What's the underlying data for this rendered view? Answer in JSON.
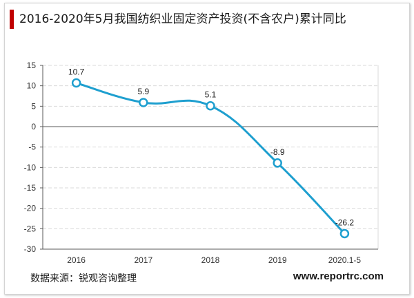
{
  "header": {
    "title": "2016-2020年5月我国纺织业固定资产投资(不含农户)累计同比"
  },
  "footer": {
    "source": "数据来源：锐观咨询整理",
    "site": "www.reportrc.com"
  },
  "colors": {
    "accent": "#c00000",
    "line": "#1e9fcf",
    "grid": "#d9d9d9",
    "axis": "#595959"
  },
  "chart_data": {
    "type": "line",
    "title": "2016-2020年5月我国纺织业固定资产投资(不含农户)累计同比",
    "categories": [
      "2016",
      "2017",
      "2018",
      "2019",
      "2020.1-5"
    ],
    "series": [
      {
        "values": [
          10.7,
          5.9,
          5.1,
          -8.9,
          -26.2
        ]
      }
    ],
    "data_labels": [
      "10.7",
      "5.9",
      "5.1",
      "-8.9",
      "-26.2"
    ],
    "ylim": [
      -30,
      15
    ],
    "yticks": [
      15,
      10,
      5,
      0,
      -5,
      -10,
      -15,
      -20,
      -25,
      -30
    ],
    "grid": true,
    "smooth": true,
    "legend": "none"
  }
}
